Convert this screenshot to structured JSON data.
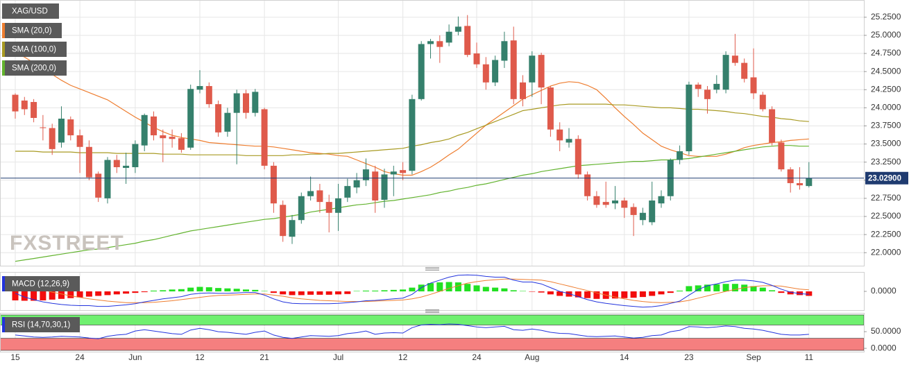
{
  "chart_data": [
    {
      "type": "candlestick",
      "symbol": "XAG/USD",
      "watermark": "FXSTREET",
      "categories": [
        "15",
        null,
        null,
        null,
        null,
        null,
        null,
        "24",
        null,
        null,
        null,
        null,
        null,
        "Jun",
        null,
        null,
        null,
        null,
        null,
        null,
        "12",
        null,
        null,
        null,
        null,
        null,
        null,
        "21",
        null,
        null,
        null,
        null,
        null,
        null,
        null,
        "Jul",
        null,
        null,
        null,
        null,
        null,
        null,
        "12",
        null,
        null,
        null,
        null,
        null,
        null,
        null,
        "24",
        null,
        null,
        null,
        null,
        null,
        "Aug",
        null,
        null,
        null,
        null,
        null,
        null,
        null,
        null,
        null,
        "14",
        null,
        null,
        null,
        null,
        null,
        null,
        "23",
        null,
        null,
        null,
        null,
        null,
        null,
        "Sep",
        null,
        null,
        null,
        null,
        null,
        "11"
      ],
      "open": [
        24.18,
        24.1,
        24.08,
        23.73,
        23.72,
        23.52,
        23.84,
        23.62,
        23.46,
        23.09,
        22.75,
        23.28,
        23.17,
        23.18,
        23.48,
        23.88,
        23.62,
        23.6,
        23.58,
        23.45,
        24.25,
        24.3,
        24.05,
        23.67,
        23.93,
        24.2,
        23.93,
        23.98,
        23.2,
        22.66,
        22.22,
        22.45,
        22.78,
        22.86,
        22.7,
        22.55,
        22.76,
        22.9,
        23.0,
        23.12,
        22.73,
        23.08,
        23.14,
        23.13,
        24.12,
        24.88,
        24.92,
        24.9,
        25.05,
        25.13,
        24.75,
        24.6,
        24.35,
        24.65,
        24.93,
        24.35,
        24.35,
        24.73,
        24.28,
        23.7,
        23.52,
        23.57,
        23.08,
        22.78,
        22.7,
        22.68,
        22.72,
        22.63,
        22.45,
        22.42,
        22.68,
        22.78,
        23.28,
        23.4,
        24.32,
        24.25,
        24.25,
        24.25,
        24.72,
        24.62,
        24.42,
        24.18,
        23.98,
        23.52,
        23.15,
        22.96,
        22.92
      ],
      "high": [
        24.2,
        24.15,
        24.12,
        23.9,
        23.78,
        24.02,
        23.88,
        23.7,
        23.55,
        23.12,
        23.32,
        23.35,
        23.38,
        23.55,
        23.92,
        23.95,
        23.7,
        23.7,
        23.65,
        24.32,
        24.52,
        24.35,
        24.1,
        24.0,
        24.25,
        24.25,
        24.26,
        24.0,
        23.25,
        22.72,
        22.52,
        22.83,
        23.05,
        22.95,
        22.8,
        22.95,
        23.02,
        23.1,
        23.3,
        23.2,
        23.16,
        23.2,
        23.25,
        24.18,
        24.92,
        24.95,
        25.0,
        25.15,
        25.26,
        25.28,
        24.9,
        24.7,
        24.72,
        25.05,
        25.12,
        24.45,
        24.78,
        24.76,
        24.3,
        23.8,
        23.72,
        23.62,
        23.12,
        22.85,
        22.98,
        22.92,
        22.76,
        22.68,
        22.62,
        22.98,
        22.86,
        23.3,
        23.48,
        24.36,
        24.35,
        24.3,
        24.45,
        24.78,
        25.02,
        24.68,
        24.82,
        24.22,
        24.02,
        23.56,
        23.18,
        23.18,
        23.25
      ],
      "low": [
        23.85,
        23.9,
        23.8,
        23.55,
        23.35,
        23.45,
        23.55,
        23.1,
        23.0,
        22.7,
        22.68,
        23.1,
        22.95,
        23.1,
        23.4,
        23.55,
        23.25,
        23.45,
        23.38,
        23.42,
        24.2,
        24.0,
        23.6,
        23.6,
        23.22,
        23.85,
        23.88,
        23.15,
        22.55,
        22.15,
        22.12,
        22.4,
        22.72,
        22.55,
        22.28,
        22.3,
        22.7,
        22.82,
        22.92,
        22.55,
        22.62,
        22.78,
        23.0,
        23.08,
        24.1,
        24.68,
        24.62,
        24.85,
        25.0,
        24.7,
        24.55,
        24.25,
        24.3,
        24.55,
        24.05,
        24.02,
        24.15,
        24.05,
        23.6,
        23.4,
        23.45,
        23.02,
        22.72,
        22.62,
        22.62,
        22.6,
        22.48,
        22.23,
        22.38,
        22.38,
        22.62,
        22.72,
        23.22,
        23.35,
        24.15,
        23.92,
        24.2,
        24.2,
        24.58,
        24.35,
        24.12,
        23.95,
        23.48,
        23.12,
        22.83,
        22.87,
        22.9
      ],
      "close": [
        23.95,
        23.98,
        23.86,
        23.72,
        23.43,
        23.85,
        23.62,
        23.46,
        23.04,
        22.76,
        23.28,
        23.18,
        23.2,
        23.5,
        23.9,
        23.62,
        23.58,
        23.57,
        23.42,
        24.26,
        24.3,
        24.05,
        23.66,
        23.93,
        24.2,
        23.93,
        24.22,
        23.2,
        22.68,
        22.23,
        22.45,
        22.78,
        22.85,
        22.7,
        22.55,
        22.75,
        22.92,
        23.0,
        23.15,
        22.72,
        23.08,
        23.12,
        23.1,
        24.12,
        24.88,
        24.92,
        24.84,
        25.05,
        25.12,
        24.73,
        24.6,
        24.35,
        24.66,
        24.92,
        24.12,
        24.12,
        24.72,
        24.28,
        23.7,
        23.55,
        23.57,
        23.08,
        22.78,
        22.66,
        22.66,
        22.72,
        22.62,
        22.52,
        22.55,
        22.72,
        22.78,
        23.28,
        23.4,
        24.32,
        24.26,
        24.12,
        24.33,
        24.73,
        24.62,
        24.4,
        24.2,
        23.98,
        23.52,
        23.15,
        22.96,
        22.93,
        23.03
      ],
      "up_color": "#35806c",
      "down_color": "#df5a4b",
      "series": [
        {
          "name": "SMA (20,0)",
          "color": "#ee7d2f",
          "values": [
            24.77,
            24.7,
            24.62,
            24.54,
            24.46,
            24.38,
            24.31,
            24.26,
            24.21,
            24.16,
            24.11,
            24.03,
            23.95,
            23.87,
            23.8,
            23.73,
            23.67,
            23.62,
            23.59,
            23.57,
            23.55,
            23.52,
            23.51,
            23.5,
            23.49,
            23.48,
            23.47,
            23.47,
            23.46,
            23.44,
            23.42,
            23.4,
            23.38,
            23.37,
            23.36,
            23.34,
            23.33,
            23.28,
            23.23,
            23.18,
            23.12,
            23.09,
            23.07,
            23.07,
            23.12,
            23.18,
            23.26,
            23.35,
            23.43,
            23.54,
            23.65,
            23.76,
            23.85,
            23.94,
            24.03,
            24.12,
            24.18,
            24.24,
            24.3,
            24.34,
            24.36,
            24.35,
            24.31,
            24.25,
            24.13,
            24.0,
            23.88,
            23.77,
            23.65,
            23.56,
            23.47,
            23.42,
            23.38,
            23.34,
            23.33,
            23.33,
            23.33,
            23.36,
            23.4,
            23.45,
            23.48,
            23.5,
            23.52,
            23.53,
            23.55,
            23.56,
            23.57
          ]
        },
        {
          "name": "SMA (100,0)",
          "color": "#a89a22",
          "values": [
            23.4,
            23.4,
            23.4,
            23.39,
            23.39,
            23.39,
            23.39,
            23.38,
            23.38,
            23.38,
            23.38,
            23.37,
            23.37,
            23.37,
            23.37,
            23.37,
            23.36,
            23.36,
            23.36,
            23.35,
            23.35,
            23.35,
            23.35,
            23.35,
            23.35,
            23.34,
            23.34,
            23.34,
            23.34,
            23.34,
            23.35,
            23.35,
            23.36,
            23.36,
            23.37,
            23.37,
            23.38,
            23.39,
            23.4,
            23.41,
            23.42,
            23.43,
            23.44,
            23.47,
            23.49,
            23.52,
            23.54,
            23.57,
            23.62,
            23.66,
            23.71,
            23.76,
            23.81,
            23.86,
            23.91,
            23.96,
            23.98,
            24.0,
            24.02,
            24.04,
            24.05,
            24.05,
            24.05,
            24.05,
            24.05,
            24.04,
            24.04,
            24.03,
            24.02,
            24.01,
            24.0,
            24.0,
            23.99,
            23.98,
            23.98,
            23.97,
            23.96,
            23.95,
            23.93,
            23.92,
            23.9,
            23.88,
            23.87,
            23.85,
            23.84,
            23.82,
            23.81
          ]
        },
        {
          "name": "SMA (200,0)",
          "color": "#62b32e",
          "values": [
            21.88,
            21.9,
            21.92,
            21.94,
            21.96,
            21.98,
            22.0,
            22.02,
            22.04,
            22.05,
            22.07,
            22.09,
            22.11,
            22.13,
            22.16,
            22.18,
            22.21,
            22.24,
            22.27,
            22.3,
            22.32,
            22.34,
            22.36,
            22.38,
            22.4,
            22.42,
            22.44,
            22.46,
            22.47,
            22.49,
            22.51,
            22.53,
            22.56,
            22.58,
            22.6,
            22.62,
            22.64,
            22.66,
            22.67,
            22.69,
            22.71,
            22.72,
            22.74,
            22.76,
            22.78,
            22.8,
            22.83,
            22.85,
            22.88,
            22.9,
            22.93,
            22.95,
            22.98,
            23.01,
            23.04,
            23.07,
            23.09,
            23.12,
            23.14,
            23.16,
            23.18,
            23.2,
            23.21,
            23.22,
            23.23,
            23.24,
            23.25,
            23.26,
            23.26,
            23.27,
            23.28,
            23.28,
            23.29,
            23.3,
            23.32,
            23.34,
            23.36,
            23.38,
            23.4,
            23.42,
            23.44,
            23.46,
            23.47,
            23.48,
            23.48,
            23.47,
            23.47
          ]
        }
      ],
      "last_price": {
        "value": 23.029,
        "label": "23.02900"
      },
      "last_price_color": "#1f3b70",
      "ylim": [
        21.82,
        25.44
      ],
      "yticks": [
        {
          "value": 22.0,
          "label": "22.0000"
        },
        {
          "value": 22.25,
          "label": "22.2500"
        },
        {
          "value": 22.5,
          "label": "22.5000"
        },
        {
          "value": 22.75,
          "label": "22.7500"
        },
        {
          "value": 23.0,
          "label": "23.0000"
        },
        {
          "value": 23.25,
          "label": "23.2500"
        },
        {
          "value": 23.5,
          "label": "23.5000"
        },
        {
          "value": 23.75,
          "label": "23.7500"
        },
        {
          "value": 24.0,
          "label": "24.0000"
        },
        {
          "value": 24.25,
          "label": "24.2500"
        },
        {
          "value": 24.5,
          "label": "24.5000"
        },
        {
          "value": 24.75,
          "label": "24.7500"
        },
        {
          "value": 25.0,
          "label": "25.0000"
        },
        {
          "value": 25.25,
          "label": "25.2500"
        }
      ],
      "grid": true
    },
    {
      "type": "macd",
      "title": "MACD (12,26,9)",
      "histogram": {
        "up_color": "#22e022",
        "down_color": "#f20d0d",
        "values": [
          -0.24,
          -0.25,
          -0.25,
          -0.24,
          -0.22,
          -0.2,
          -0.18,
          -0.16,
          -0.14,
          -0.12,
          -0.1,
          -0.08,
          -0.06,
          -0.04,
          -0.02,
          0.02,
          0.03,
          0.05,
          0.06,
          0.1,
          0.12,
          0.11,
          0.09,
          0.08,
          0.07,
          0.05,
          0.04,
          0.01,
          -0.04,
          -0.08,
          -0.1,
          -0.1,
          -0.09,
          -0.09,
          -0.09,
          -0.08,
          -0.07,
          0.01,
          0.02,
          0.02,
          0.03,
          0.04,
          0.05,
          0.1,
          0.18,
          0.22,
          0.24,
          0.25,
          0.24,
          0.2,
          0.16,
          0.12,
          0.1,
          0.08,
          0.03,
          0.01,
          -0.01,
          -0.03,
          -0.08,
          -0.12,
          -0.14,
          -0.16,
          -0.18,
          -0.2,
          -0.2,
          -0.19,
          -0.18,
          -0.17,
          -0.15,
          -0.12,
          -0.08,
          -0.04,
          0.02,
          0.14,
          0.16,
          0.18,
          0.19,
          0.2,
          0.2,
          0.18,
          0.14,
          0.1,
          0.03,
          -0.04,
          -0.08,
          -0.1,
          -0.12
        ]
      },
      "macd": {
        "color": "#2233dd",
        "values": [
          -0.05,
          -0.15,
          -0.22,
          -0.28,
          -0.32,
          -0.35,
          -0.37,
          -0.38,
          -0.38,
          -0.4,
          -0.4,
          -0.38,
          -0.36,
          -0.33,
          -0.28,
          -0.24,
          -0.2,
          -0.17,
          -0.14,
          -0.08,
          -0.05,
          -0.04,
          -0.05,
          -0.05,
          -0.04,
          -0.03,
          -0.03,
          -0.1,
          -0.2,
          -0.28,
          -0.32,
          -0.33,
          -0.33,
          -0.33,
          -0.33,
          -0.32,
          -0.3,
          -0.28,
          -0.25,
          -0.24,
          -0.22,
          -0.2,
          -0.18,
          -0.08,
          0.1,
          0.22,
          0.3,
          0.38,
          0.43,
          0.44,
          0.43,
          0.4,
          0.38,
          0.38,
          0.3,
          0.25,
          0.25,
          0.2,
          0.1,
          0.0,
          -0.06,
          -0.14,
          -0.22,
          -0.28,
          -0.32,
          -0.35,
          -0.38,
          -0.4,
          -0.42,
          -0.41,
          -0.38,
          -0.32,
          -0.26,
          -0.1,
          0.05,
          0.15,
          0.2,
          0.26,
          0.3,
          0.3,
          0.28,
          0.24,
          0.16,
          0.06,
          -0.02,
          -0.06,
          -0.08
        ]
      },
      "signal": {
        "color": "#ee7d2f",
        "values": [
          0.2,
          0.15,
          0.1,
          0.04,
          -0.02,
          -0.07,
          -0.12,
          -0.16,
          -0.2,
          -0.23,
          -0.26,
          -0.28,
          -0.3,
          -0.3,
          -0.3,
          -0.29,
          -0.27,
          -0.25,
          -0.22,
          -0.19,
          -0.16,
          -0.13,
          -0.11,
          -0.1,
          -0.09,
          -0.08,
          -0.07,
          -0.07,
          -0.1,
          -0.13,
          -0.17,
          -0.2,
          -0.22,
          -0.24,
          -0.25,
          -0.26,
          -0.27,
          -0.27,
          -0.27,
          -0.26,
          -0.25,
          -0.24,
          -0.23,
          -0.2,
          -0.15,
          -0.08,
          0.0,
          0.08,
          0.15,
          0.22,
          0.26,
          0.29,
          0.31,
          0.33,
          0.33,
          0.32,
          0.31,
          0.3,
          0.26,
          0.2,
          0.14,
          0.08,
          0.02,
          -0.04,
          -0.1,
          -0.15,
          -0.2,
          -0.24,
          -0.27,
          -0.29,
          -0.3,
          -0.29,
          -0.28,
          -0.24,
          -0.18,
          -0.12,
          -0.06,
          0.0,
          0.05,
          0.1,
          0.13,
          0.15,
          0.15,
          0.14,
          0.1,
          0.06,
          0.04
        ]
      },
      "ylim": [
        -0.5,
        0.5
      ],
      "yticks": [
        {
          "value": 0,
          "label": "0.0000"
        }
      ]
    },
    {
      "type": "rsi",
      "title": "RSI (14,70,30,1)",
      "color": "#2233dd",
      "values": [
        40,
        37,
        34,
        33,
        34,
        36,
        35,
        34,
        31,
        29,
        36,
        40,
        42,
        52,
        56,
        52,
        48,
        44,
        42,
        55,
        60,
        56,
        50,
        48,
        45,
        42,
        48,
        52,
        40,
        33,
        30,
        34,
        38,
        37,
        36,
        38,
        44,
        47,
        52,
        42,
        46,
        47,
        46,
        62,
        70,
        72,
        71,
        73,
        72,
        68,
        64,
        62,
        64,
        66,
        56,
        54,
        58,
        54,
        48,
        45,
        44,
        40,
        36,
        35,
        36,
        37,
        34,
        31,
        33,
        38,
        40,
        50,
        54,
        65,
        64,
        62,
        64,
        67,
        65,
        60,
        58,
        54,
        48,
        42,
        40,
        40,
        42
      ],
      "overbought": 70,
      "oversold": 30,
      "overbought_color": "#6ff06f",
      "oversold_color": "#f57f7f",
      "ylim": [
        -6,
        100
      ],
      "yticks": [
        {
          "value": 50,
          "label": "50.0000"
        },
        {
          "value": 0,
          "label": "0.0000"
        }
      ]
    }
  ]
}
